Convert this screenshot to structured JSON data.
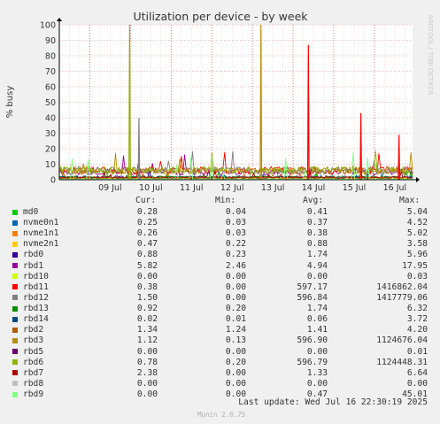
{
  "chart_data": {
    "type": "line",
    "title": "Utilization per device - by week",
    "ylabel": "% busy",
    "watermark": "RRDTOOL / TOBI OETIKER",
    "ylim": [
      0,
      100
    ],
    "yticks": [
      0,
      10,
      20,
      30,
      40,
      50,
      60,
      70,
      80,
      90,
      100
    ],
    "xlim": [
      "2025-07-08 06:00",
      "2025-07-16 22:30"
    ],
    "xticks": [
      "09 Jul",
      "10 Jul",
      "11 Jul",
      "12 Jul",
      "13 Jul",
      "14 Jul",
      "15 Jul",
      "16 Jul"
    ],
    "grid": true,
    "series": [
      {
        "name": "md0",
        "color": "#00cc00"
      },
      {
        "name": "nvme0n1",
        "color": "#0066b3"
      },
      {
        "name": "nvme1n1",
        "color": "#ff8000"
      },
      {
        "name": "nvme2n1",
        "color": "#ffcc00"
      },
      {
        "name": "rbd0",
        "color": "#330099"
      },
      {
        "name": "rbd1",
        "color": "#990099"
      },
      {
        "name": "rbd10",
        "color": "#ccff00"
      },
      {
        "name": "rbd11",
        "color": "#ff0000"
      },
      {
        "name": "rbd12",
        "color": "#808080"
      },
      {
        "name": "rbd13",
        "color": "#008f00"
      },
      {
        "name": "rbd14",
        "color": "#00487d"
      },
      {
        "name": "rbd2",
        "color": "#b35a00"
      },
      {
        "name": "rbd3",
        "color": "#b38f00"
      },
      {
        "name": "rbd5",
        "color": "#6b006b"
      },
      {
        "name": "rbd6",
        "color": "#8fb300"
      },
      {
        "name": "rbd7",
        "color": "#b30000"
      },
      {
        "name": "rbd8",
        "color": "#bebebe"
      },
      {
        "name": "rbd9",
        "color": "#80ff80"
      }
    ],
    "spikes": [
      {
        "series": "rbd6",
        "x": "2025-07-09 23:30",
        "y": 100
      },
      {
        "series": "rbd12",
        "x": "2025-07-10 05:00",
        "y": 40
      },
      {
        "series": "rbd3",
        "x": "2025-07-13 05:00",
        "y": 100
      },
      {
        "series": "rbd11",
        "x": "2025-07-14 09:00",
        "y": 87
      },
      {
        "series": "rbd11",
        "x": "2025-07-15 16:00",
        "y": 43
      },
      {
        "series": "rbd11",
        "x": "2025-07-16 14:30",
        "y": 29
      }
    ]
  },
  "legend": {
    "headers": {
      "cur": "Cur:",
      "min": "Min:",
      "avg": "Avg:",
      "max": "Max:"
    },
    "rows": [
      {
        "name": "md0",
        "color": "#00cc00",
        "cur": "0.28",
        "min": "0.04",
        "avg": "0.41",
        "max": "5.04"
      },
      {
        "name": "nvme0n1",
        "color": "#0066b3",
        "cur": "0.25",
        "min": "0.03",
        "avg": "0.37",
        "max": "4.52"
      },
      {
        "name": "nvme1n1",
        "color": "#ff8000",
        "cur": "0.26",
        "min": "0.03",
        "avg": "0.38",
        "max": "5.02"
      },
      {
        "name": "nvme2n1",
        "color": "#ffcc00",
        "cur": "0.47",
        "min": "0.22",
        "avg": "0.88",
        "max": "3.58"
      },
      {
        "name": "rbd0",
        "color": "#330099",
        "cur": "0.88",
        "min": "0.23",
        "avg": "1.74",
        "max": "5.96"
      },
      {
        "name": "rbd1",
        "color": "#990099",
        "cur": "5.82",
        "min": "2.46",
        "avg": "4.94",
        "max": "17.95"
      },
      {
        "name": "rbd10",
        "color": "#ccff00",
        "cur": "0.00",
        "min": "0.00",
        "avg": "0.00",
        "max": "0.03"
      },
      {
        "name": "rbd11",
        "color": "#ff0000",
        "cur": "0.38",
        "min": "0.00",
        "avg": "597.17",
        "max": "1416862.04"
      },
      {
        "name": "rbd12",
        "color": "#808080",
        "cur": "1.50",
        "min": "0.00",
        "avg": "596.84",
        "max": "1417779.06"
      },
      {
        "name": "rbd13",
        "color": "#008f00",
        "cur": "0.92",
        "min": "0.20",
        "avg": "1.74",
        "max": "6.32"
      },
      {
        "name": "rbd14",
        "color": "#00487d",
        "cur": "0.02",
        "min": "0.01",
        "avg": "0.06",
        "max": "3.72"
      },
      {
        "name": "rbd2",
        "color": "#b35a00",
        "cur": "1.34",
        "min": "1.24",
        "avg": "1.41",
        "max": "4.20"
      },
      {
        "name": "rbd3",
        "color": "#b38f00",
        "cur": "1.12",
        "min": "0.13",
        "avg": "596.90",
        "max": "1124676.04"
      },
      {
        "name": "rbd5",
        "color": "#6b006b",
        "cur": "0.00",
        "min": "0.00",
        "avg": "0.00",
        "max": "0.01"
      },
      {
        "name": "rbd6",
        "color": "#8fb300",
        "cur": "0.78",
        "min": "0.20",
        "avg": "596.79",
        "max": "1124448.31"
      },
      {
        "name": "rbd7",
        "color": "#b30000",
        "cur": "2.38",
        "min": "0.00",
        "avg": "1.33",
        "max": "6.64"
      },
      {
        "name": "rbd8",
        "color": "#bebebe",
        "cur": "0.00",
        "min": "0.00",
        "avg": "0.00",
        "max": "0.00"
      },
      {
        "name": "rbd9",
        "color": "#80ff80",
        "cur": "0.00",
        "min": "0.00",
        "avg": "0.47",
        "max": "45.01"
      }
    ],
    "last_update": "Last update: Wed Jul 16 22:30:19 2025",
    "munin_version": "Munin 2.0.75"
  }
}
